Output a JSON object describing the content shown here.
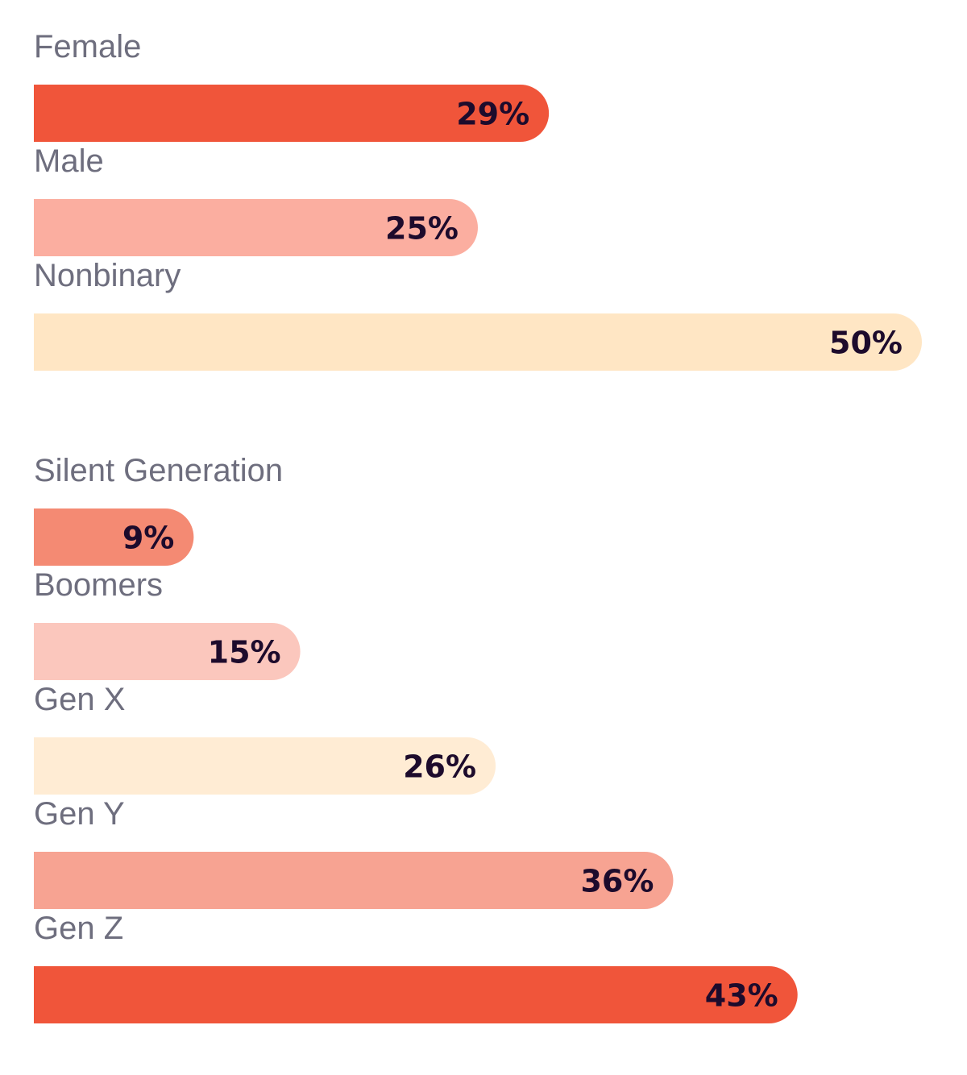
{
  "chart_data": [
    {
      "type": "bar",
      "orientation": "horizontal",
      "categories": [
        "Female",
        "Male",
        "Nonbinary"
      ],
      "values": [
        29,
        25,
        50
      ],
      "value_labels": [
        "29%",
        "25%",
        "50%"
      ],
      "colors": [
        "#f0553a",
        "#fbaea0",
        "#ffe6c4"
      ],
      "unit": "%",
      "xlim": [
        0,
        50
      ],
      "grid": false
    },
    {
      "type": "bar",
      "orientation": "horizontal",
      "categories": [
        "Silent Generation",
        "Boomers",
        "Gen X",
        "Gen Y",
        "Gen Z"
      ],
      "values": [
        9,
        15,
        26,
        36,
        43
      ],
      "value_labels": [
        "9%",
        "15%",
        "26%",
        "36%",
        "43%"
      ],
      "colors": [
        "#f48a73",
        "#fbc7bd",
        "#ffecd4",
        "#f7a392",
        "#f0553a"
      ],
      "unit": "%",
      "xlim": [
        0,
        50
      ],
      "grid": false
    }
  ]
}
